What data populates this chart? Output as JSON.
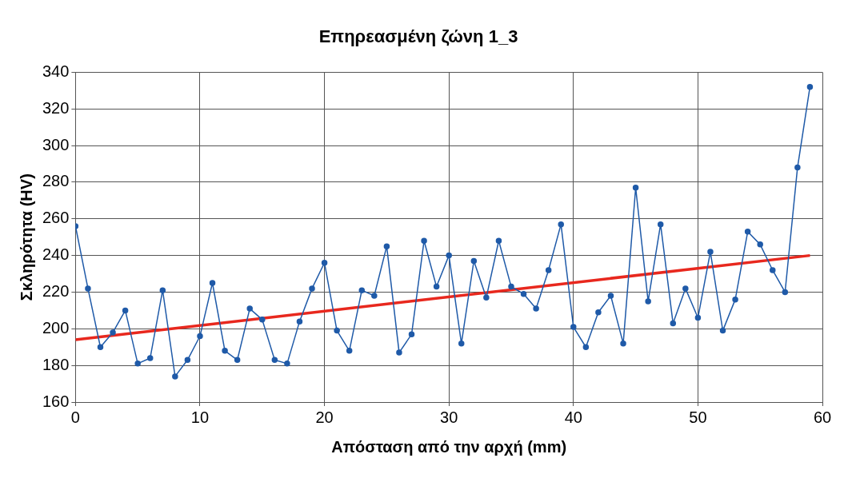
{
  "chart_data": {
    "type": "line",
    "title": "Επηρεασμένη ζώνη 1_3",
    "xlabel": "Απόσταση από την αρχή (mm)",
    "ylabel": "Σκληρότητα (HV)",
    "x": [
      0,
      1,
      2,
      3,
      4,
      5,
      6,
      7,
      8,
      9,
      10,
      11,
      12,
      13,
      14,
      15,
      16,
      17,
      18,
      19,
      20,
      21,
      22,
      23,
      24,
      25,
      26,
      27,
      28,
      29,
      30,
      31,
      32,
      33,
      34,
      35,
      36,
      37,
      38,
      39,
      40,
      41,
      42,
      43,
      44,
      45,
      46,
      47,
      48,
      49,
      50,
      51,
      52,
      53,
      54,
      55,
      56,
      57,
      58,
      59
    ],
    "series": [
      {
        "color": "#1f5aa8",
        "marker": "circle",
        "values": [
          256,
          222,
          190,
          198,
          210,
          181,
          184,
          221,
          174,
          183,
          196,
          225,
          188,
          183,
          211,
          205,
          183,
          181,
          204,
          222,
          236,
          199,
          188,
          221,
          218,
          245,
          187,
          197,
          248,
          223,
          240,
          192,
          237,
          217,
          248,
          223,
          219,
          211,
          232,
          257,
          201,
          190,
          209,
          218,
          192,
          277,
          215,
          257,
          203,
          222,
          206,
          242,
          199,
          216,
          253,
          246,
          232,
          220,
          288,
          332
        ]
      },
      {
        "type": "line",
        "color": "#e8281e",
        "marker": "none",
        "x": [
          0,
          59
        ],
        "values": [
          194,
          240
        ]
      }
    ],
    "xlim": [
      0,
      60
    ],
    "xticks": [
      0,
      10,
      20,
      30,
      40,
      50,
      60
    ],
    "ylim": [
      160,
      340
    ],
    "yticks": [
      160,
      180,
      200,
      220,
      240,
      260,
      280,
      300,
      320,
      340
    ],
    "grid": true,
    "legend": false
  }
}
